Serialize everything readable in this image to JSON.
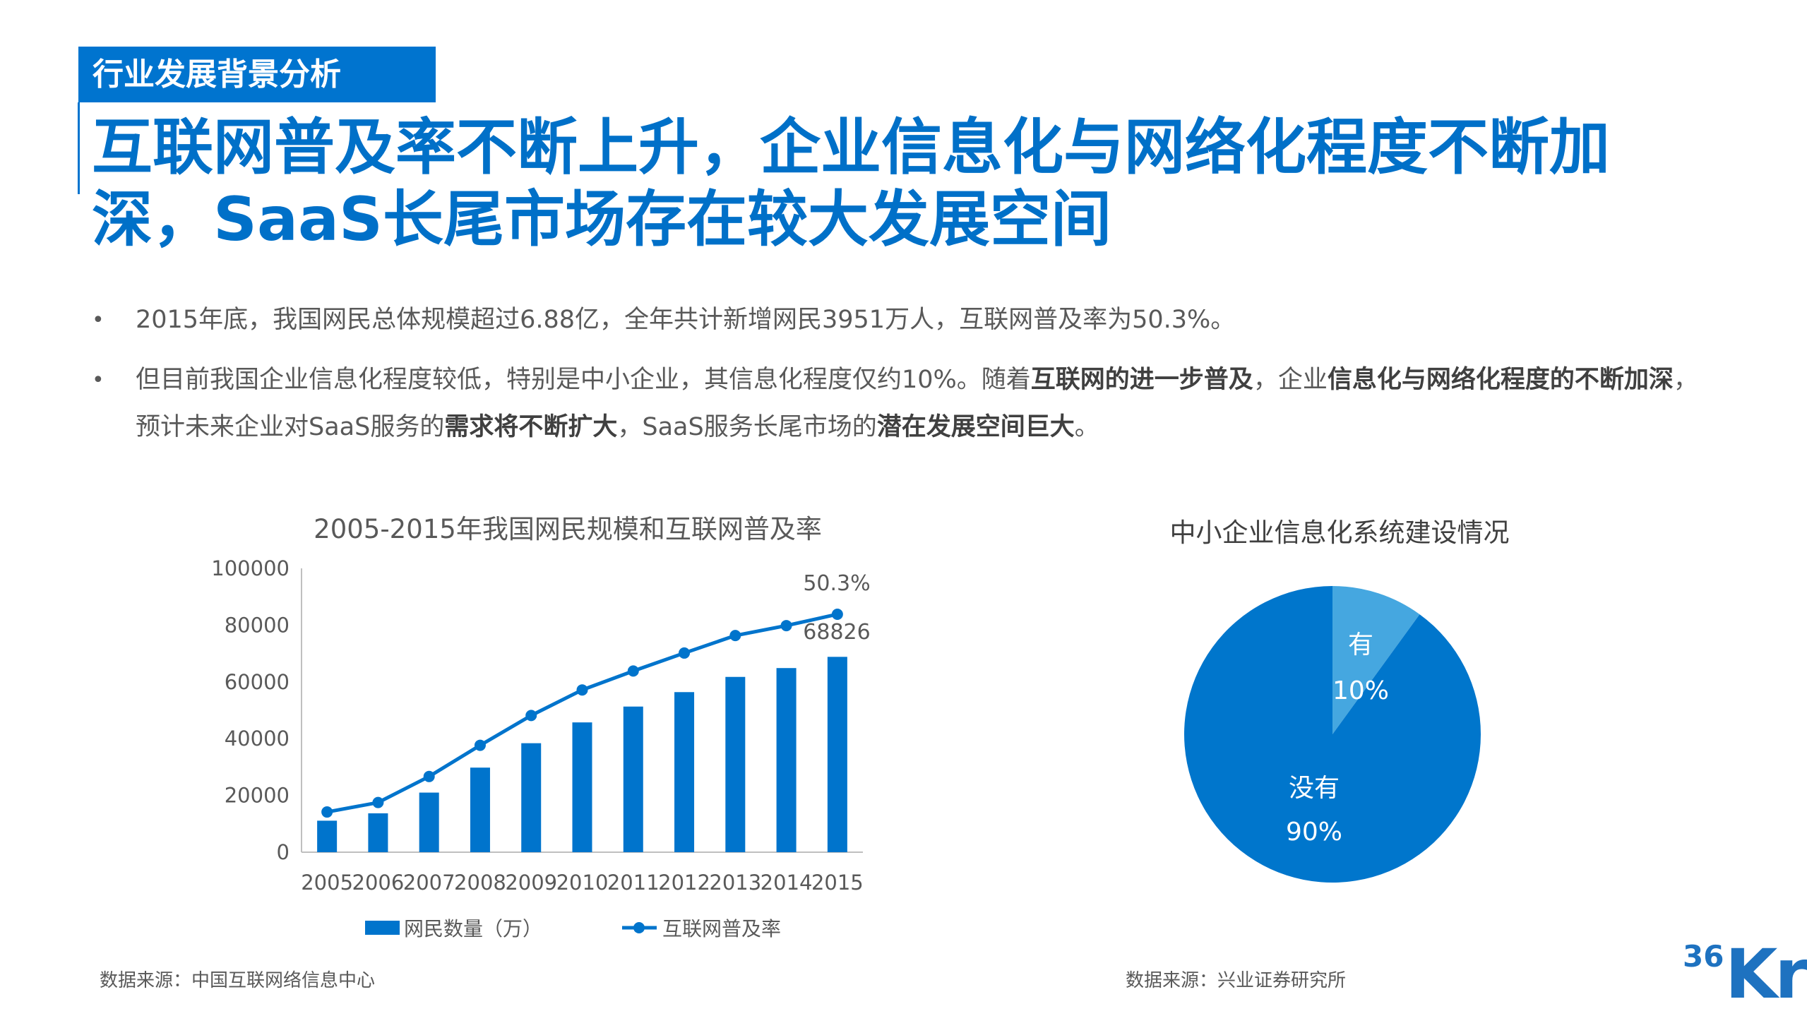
{
  "header": {
    "tag": "行业发展背景分析",
    "title_line1": "互联网普及率不断上升，企业信息化与网络化程度不断加",
    "title_line2": "深，SaaS长尾市场存在较大发展空间"
  },
  "bullets": {
    "marker": "•",
    "b1": "2015年底，我国网民总体规模超过6.88亿，全年共计新增网民3951万人，互联网普及率为50.3%。",
    "b2": [
      {
        "text": "但目前我国企业信息化程度较低，特别是中小企业，其信息化程度仅约10%。随着",
        "bold": false
      },
      {
        "text": "互联网的进一步普及",
        "bold": true
      },
      {
        "text": "，企业",
        "bold": false
      },
      {
        "text": "信息化与网络化程度的不断加深",
        "bold": true
      },
      {
        "text": "，预计未来企业对SaaS服务的",
        "bold": false
      },
      {
        "text": "需求将不断扩大",
        "bold": true
      },
      {
        "text": "，SaaS服务长尾市场的",
        "bold": false
      },
      {
        "text": "潜在发展空间巨大",
        "bold": true
      },
      {
        "text": "。",
        "bold": false
      }
    ]
  },
  "sources": {
    "left": "数据来源：中国互联网络信息中心",
    "right": "数据来源：兴业证券研究所"
  },
  "logo": {
    "top": "36",
    "main": "Kr",
    "color": "#1E72C0"
  },
  "colors": {
    "bar": "#0074CC",
    "pie_main": "#0076CC",
    "pie_slice": "#45A7E0",
    "axis": "#BFBFBF",
    "text": "#595959"
  },
  "chart_data": [
    {
      "type": "bar+line",
      "title": "2005-2015年我国网民规模和互联网普及率",
      "categories": [
        "2005",
        "2006",
        "2007",
        "2008",
        "2009",
        "2010",
        "2011",
        "2012",
        "2013",
        "2014",
        "2015"
      ],
      "ylim": [
        0,
        100000
      ],
      "yticks": [
        "0",
        "20000",
        "40000",
        "60000",
        "80000",
        "100000"
      ],
      "secondary_ylim": [
        0,
        60
      ],
      "grid": false,
      "legend_position": "bottom",
      "series": [
        {
          "name": "网民数量（万）",
          "type": "bar",
          "values": [
            11100,
            13700,
            21000,
            29800,
            38400,
            45730,
            51310,
            56400,
            61758,
            64875,
            68826
          ]
        },
        {
          "name": "互联网普及率",
          "type": "line",
          "axis": "secondary",
          "values": [
            8.5,
            10.5,
            16.0,
            22.6,
            28.9,
            34.3,
            38.3,
            42.1,
            45.8,
            47.9,
            50.3
          ]
        }
      ],
      "annotations": {
        "last_rate": "50.3%",
        "last_users": "68826"
      }
    },
    {
      "type": "pie",
      "title": "中小企业信息化系统建设情况",
      "slices": [
        {
          "label": "有",
          "value": 10,
          "value_label": "10%"
        },
        {
          "label": "没有",
          "value": 90,
          "value_label": "90%"
        }
      ]
    }
  ]
}
